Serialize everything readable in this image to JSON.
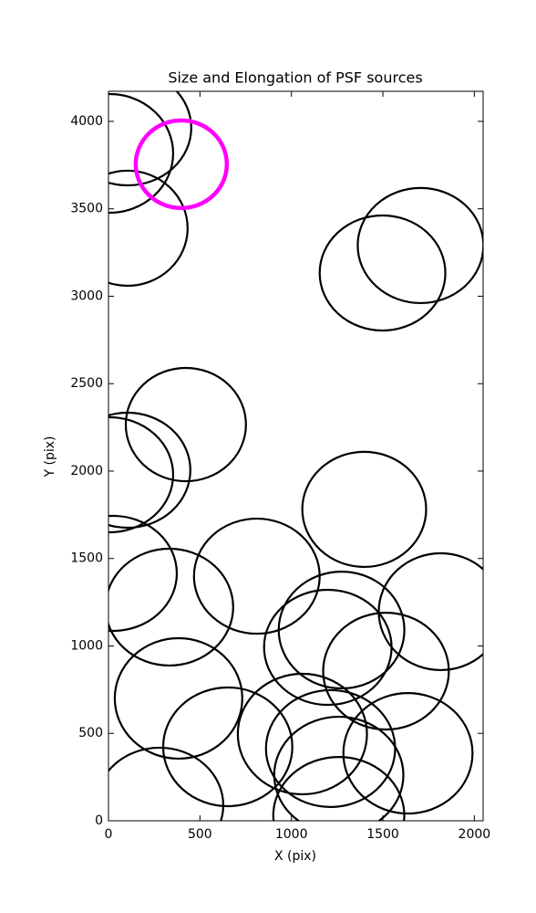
{
  "chart_data": {
    "type": "ellipse",
    "title": "Size and Elongation of PSF sources",
    "xlabel": "X (pix)",
    "ylabel": "Y (pix)",
    "xlim": [
      0,
      2048
    ],
    "ylim": [
      0,
      4172
    ],
    "xticks": [
      0,
      500,
      1000,
      1500,
      2000
    ],
    "yticks": [
      0,
      500,
      1000,
      1500,
      2000,
      2500,
      3000,
      3500,
      4000
    ],
    "series": [
      {
        "color": "#000000",
        "x": [
          104,
          5,
          104,
          1706,
          1498,
          423,
          104,
          5,
          1398,
          25,
          811,
          333,
          1274,
          1816,
          1199,
          1517,
          383,
          1060,
          652,
          1637,
          1214,
          279,
          1259,
          1259
        ],
        "y": [
          3963,
          3817,
          3389,
          3290,
          3133,
          2266,
          2005,
          1979,
          1781,
          1415,
          1399,
          1222,
          1091,
          1196,
          992,
          856,
          700,
          496,
          423,
          386,
          413,
          89,
          261,
          31
        ],
        "width": [
          697,
          697,
          657,
          687,
          687,
          657,
          687,
          697,
          677,
          697,
          687,
          697,
          687,
          677,
          697,
          687,
          697,
          706,
          706,
          706,
          706,
          697,
          706,
          716
        ],
        "height": [
          658,
          679,
          658,
          658,
          658,
          648,
          658,
          658,
          658,
          658,
          658,
          668,
          668,
          668,
          658,
          668,
          689,
          689,
          679,
          689,
          668,
          658,
          668,
          668
        ]
      },
      {
        "color": "#ff00ff",
        "x": [
          398
        ],
        "y": [
          3755
        ],
        "width": [
          498
        ],
        "height": [
          501
        ]
      }
    ]
  }
}
